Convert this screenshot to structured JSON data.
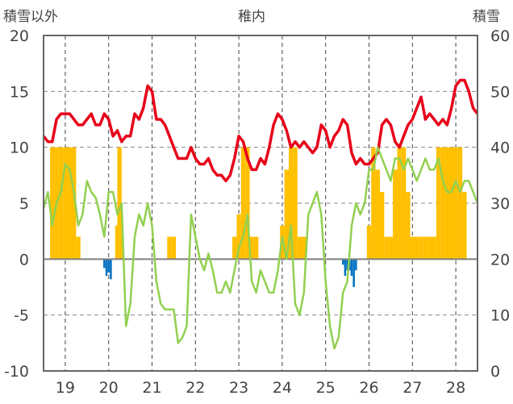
{
  "header": {
    "left_axis_title": "積雪以外",
    "center_title": "稚内",
    "right_axis_title": "積雪"
  },
  "chart_data": {
    "type": "line",
    "title": "稚内",
    "x_ticks": [
      "19",
      "20",
      "21",
      "22",
      "23",
      "24",
      "25",
      "26",
      "27",
      "28"
    ],
    "xlim": [
      18.5,
      28.5
    ],
    "y_left": {
      "label": "積雪以外",
      "lim": [
        -10,
        20
      ],
      "ticks": [
        "-10",
        "-5",
        "0",
        "5",
        "10",
        "15",
        "20"
      ]
    },
    "y_right": {
      "label": "積雪",
      "lim": [
        0,
        60
      ],
      "ticks": [
        "0",
        "10",
        "20",
        "30",
        "40",
        "50",
        "60"
      ]
    },
    "grid": true,
    "colors": {
      "red": "#e8001a",
      "green": "#92d050",
      "orange": "#ffc000",
      "blue": "#0070c0",
      "zero": "#7f7f7f"
    },
    "series": [
      {
        "type": "line",
        "axis": "right",
        "color": "#e8001a",
        "x": [
          18.5,
          18.6,
          18.7,
          18.8,
          18.9,
          19.0,
          19.1,
          19.2,
          19.3,
          19.4,
          19.5,
          19.6,
          19.7,
          19.8,
          19.9,
          20.0,
          20.1,
          20.2,
          20.3,
          20.4,
          20.5,
          20.6,
          20.7,
          20.8,
          20.9,
          21.0,
          21.1,
          21.2,
          21.3,
          21.4,
          21.5,
          21.6,
          21.7,
          21.8,
          21.9,
          22.0,
          22.1,
          22.2,
          22.3,
          22.4,
          22.5,
          22.6,
          22.7,
          22.8,
          22.9,
          23.0,
          23.1,
          23.2,
          23.3,
          23.4,
          23.5,
          23.6,
          23.7,
          23.8,
          23.9,
          24.0,
          24.1,
          24.2,
          24.3,
          24.4,
          24.5,
          24.6,
          24.7,
          24.8,
          24.9,
          25.0,
          25.1,
          25.2,
          25.3,
          25.4,
          25.5,
          25.6,
          25.7,
          25.8,
          25.9,
          26.0,
          26.1,
          26.2,
          26.3,
          26.4,
          26.5,
          26.6,
          26.7,
          26.8,
          26.9,
          27.0,
          27.1,
          27.2,
          27.3,
          27.4,
          27.5,
          27.6,
          27.7,
          27.8,
          27.9,
          28.0,
          28.1,
          28.2,
          28.3,
          28.4,
          28.5
        ],
        "values": [
          42,
          41,
          41,
          45,
          46,
          46,
          46,
          45,
          44,
          44,
          45,
          46,
          44,
          44,
          46,
          45,
          42,
          43,
          41,
          42,
          42,
          46,
          45,
          47,
          51,
          50,
          45,
          45,
          44,
          42,
          40,
          38,
          38,
          38,
          40,
          38,
          37,
          37,
          38,
          36,
          35,
          35,
          34,
          35,
          38,
          42,
          41,
          38,
          36,
          36,
          38,
          37,
          40,
          44,
          46,
          45,
          43,
          40,
          41,
          40,
          41,
          40,
          39,
          40,
          44,
          43,
          40,
          42,
          43,
          45,
          44,
          39,
          37,
          38,
          37,
          37,
          38,
          39,
          44,
          45,
          44,
          41,
          40,
          42,
          44,
          45,
          47,
          49,
          45,
          46,
          45,
          44,
          45,
          44,
          47,
          51,
          52,
          52,
          50,
          47,
          46
        ]
      },
      {
        "type": "line",
        "axis": "left",
        "color": "#92d050",
        "x": [
          18.5,
          18.6,
          18.7,
          18.8,
          18.9,
          19.0,
          19.1,
          19.2,
          19.3,
          19.4,
          19.5,
          19.6,
          19.7,
          19.8,
          19.9,
          20.0,
          20.1,
          20.2,
          20.3,
          20.4,
          20.5,
          20.6,
          20.7,
          20.8,
          20.9,
          21.0,
          21.1,
          21.2,
          21.3,
          21.4,
          21.5,
          21.6,
          21.7,
          21.8,
          21.9,
          22.0,
          22.1,
          22.2,
          22.3,
          22.4,
          22.5,
          22.6,
          22.7,
          22.8,
          22.9,
          23.0,
          23.1,
          23.2,
          23.3,
          23.4,
          23.5,
          23.6,
          23.7,
          23.8,
          23.9,
          24.0,
          24.1,
          24.2,
          24.3,
          24.4,
          24.5,
          24.6,
          24.7,
          24.8,
          24.9,
          25.0,
          25.1,
          25.2,
          25.3,
          25.4,
          25.5,
          25.6,
          25.7,
          25.8,
          25.9,
          26.0,
          26.1,
          26.2,
          26.3,
          26.4,
          26.5,
          26.6,
          26.7,
          26.8,
          26.9,
          27.0,
          27.1,
          27.2,
          27.3,
          27.4,
          27.5,
          27.6,
          27.7,
          27.8,
          27.9,
          28.0,
          28.1,
          28.2,
          28.3,
          28.4,
          28.5
        ],
        "values": [
          4.5,
          6,
          3,
          5,
          6,
          8.5,
          8,
          6,
          3,
          4,
          7,
          6,
          5.5,
          4,
          2,
          6,
          6,
          4,
          5,
          -6,
          -4,
          2,
          4,
          3,
          5,
          3,
          -2,
          -4,
          -4.5,
          -4.5,
          -4.5,
          -7.5,
          -7,
          -6,
          4,
          2,
          0,
          -1,
          0.5,
          -1,
          -3,
          -3,
          -2,
          -3,
          -1,
          1,
          2,
          4,
          -2,
          -3,
          -1,
          -2,
          -3,
          -3,
          -1,
          2,
          0,
          3,
          -4,
          -5,
          -3,
          4,
          5,
          6,
          4,
          -2,
          -6,
          -8,
          -7,
          -3,
          -2,
          3,
          5,
          4,
          5,
          8,
          8,
          10,
          9,
          8,
          7,
          9,
          9,
          8,
          9,
          8,
          7,
          8,
          9,
          8,
          8,
          9,
          7,
          6,
          6,
          7,
          6,
          7,
          7,
          6,
          5
        ]
      },
      {
        "type": "bar",
        "axis": "left",
        "color": "#ffc000",
        "label": "",
        "x": [
          18.7,
          18.8,
          18.9,
          19.0,
          19.1,
          19.2,
          19.3,
          20.2,
          20.25,
          20.3,
          21.4,
          21.5,
          22.9,
          23.0,
          23.1,
          23.2,
          23.3,
          23.4,
          24.0,
          24.1,
          24.2,
          24.3,
          24.4,
          24.5,
          26.0,
          26.1,
          26.2,
          26.3,
          26.4,
          26.5,
          26.6,
          26.7,
          26.8,
          26.9,
          27.0,
          27.1,
          27.2,
          27.3,
          27.4,
          27.5,
          27.6,
          27.7,
          27.8,
          27.9,
          28.0,
          28.1,
          28.2
        ],
        "values": [
          10,
          10,
          10,
          10,
          10,
          10,
          2,
          3,
          10,
          2,
          2,
          2,
          2,
          4,
          10,
          10,
          2,
          2,
          3,
          8,
          10,
          10,
          2,
          2,
          3,
          10,
          8,
          6,
          2,
          2,
          8,
          10,
          10,
          6,
          2,
          2,
          2,
          2,
          2,
          2,
          10,
          10,
          10,
          10,
          10,
          10,
          6
        ]
      },
      {
        "type": "bar",
        "axis": "left",
        "color": "#0070c0",
        "label": "",
        "x": [
          19.9,
          19.95,
          20.0,
          20.05,
          25.4,
          25.45,
          25.5,
          25.55,
          25.6,
          25.65,
          25.7
        ],
        "values": [
          -0.8,
          -1.5,
          -1.2,
          -1.8,
          -0.5,
          -1.5,
          -1,
          -1,
          -1.5,
          -2.5,
          -1
        ]
      }
    ]
  }
}
